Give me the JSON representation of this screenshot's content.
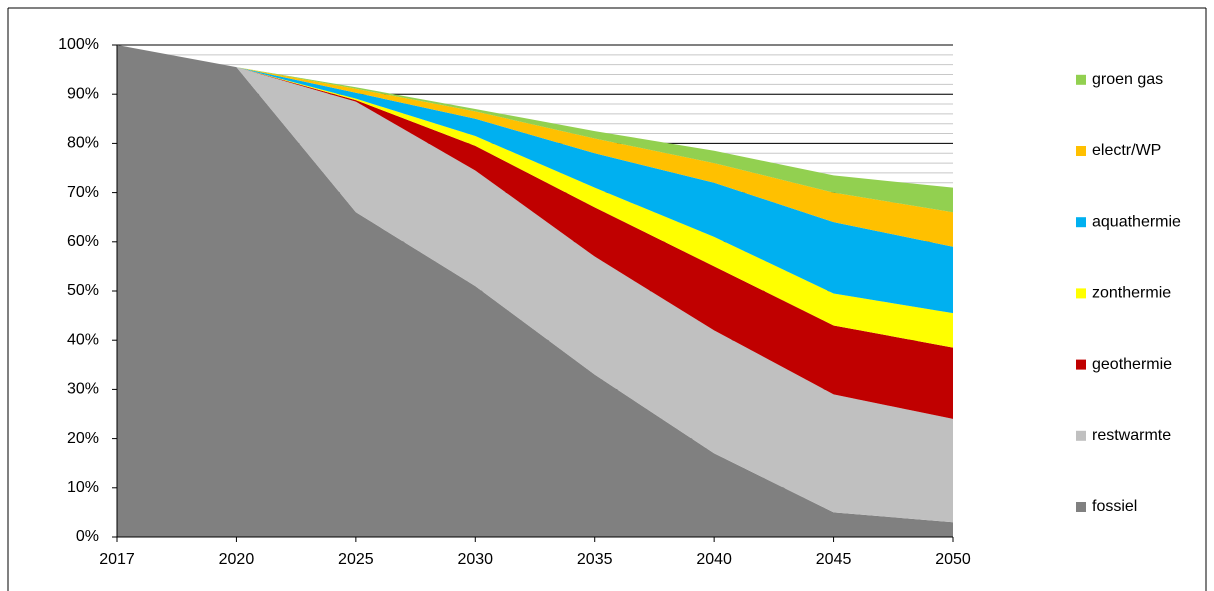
{
  "chart_data": {
    "type": "stacked_area",
    "categories": [
      "2017",
      "2020",
      "2025",
      "2030",
      "2035",
      "2040",
      "2045",
      "2050"
    ],
    "series": [
      {
        "name": "fossiel",
        "color": "#808080",
        "values": [
          100,
          95.5,
          66,
          51,
          33,
          17,
          5,
          3
        ]
      },
      {
        "name": "restwarmte",
        "color": "#c0c0c0",
        "values": [
          0,
          0,
          22.5,
          23.5,
          24,
          25,
          24,
          21
        ]
      },
      {
        "name": "geothermie",
        "color": "#c00000",
        "values": [
          0,
          0,
          0.3,
          5,
          10,
          13,
          14,
          14.5
        ]
      },
      {
        "name": "zonthermie",
        "color": "#ffff00",
        "values": [
          0,
          0,
          0.3,
          2,
          4,
          6,
          6.5,
          7
        ]
      },
      {
        "name": "aquathermie",
        "color": "#00b0f0",
        "values": [
          0,
          0,
          1.2,
          3.5,
          7,
          11,
          14.5,
          13.5
        ]
      },
      {
        "name": "electr/WP",
        "color": "#ffc000",
        "values": [
          0,
          0,
          0.8,
          1.5,
          3,
          4,
          6,
          7
        ]
      },
      {
        "name": "groen gas",
        "color": "#92d050",
        "values": [
          0,
          0,
          0.3,
          0.5,
          1.5,
          2.5,
          3.5,
          5
        ]
      }
    ],
    "ylim": [
      0,
      100
    ],
    "yticks": [
      {
        "value": 0,
        "label": "0%"
      },
      {
        "value": 10,
        "label": "10%"
      },
      {
        "value": 20,
        "label": "20%"
      },
      {
        "value": 30,
        "label": "30%"
      },
      {
        "value": 40,
        "label": "40%"
      },
      {
        "value": 50,
        "label": "50%"
      },
      {
        "value": 60,
        "label": "60%"
      },
      {
        "value": 70,
        "label": "70%"
      },
      {
        "value": 80,
        "label": "80%"
      },
      {
        "value": 90,
        "label": "90%"
      },
      {
        "value": 100,
        "label": "100%"
      }
    ],
    "grid": true
  }
}
